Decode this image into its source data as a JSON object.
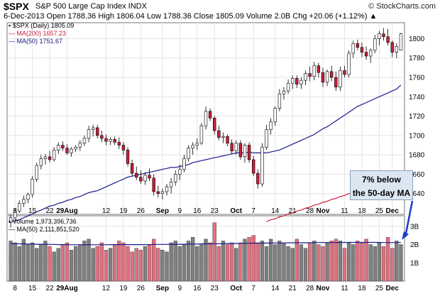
{
  "header": {
    "symbol": "$SPX",
    "name": "S&P 500 Large Cap Index INDX",
    "site": "© StockCharts.com",
    "stats_line": "6-Dec-2013   Open 1788.36  High 1806.04  Low 1788.36  Close 1805.09  Volume 2.0B  Chg +20.06 (+1.12%) ▲"
  },
  "legend": {
    "price": "$SPX (Daily) 1805.09",
    "ma200": "MA(200) 1657.23",
    "ma50": "MA(50) 1751.67"
  },
  "volume_legend": {
    "volume": "Volume 1,973,396,736",
    "ma50": "MA(50) 2,111,851,520"
  },
  "callout": {
    "line1": "7% below",
    "line2": "the 50-day MA"
  },
  "colors": {
    "up": "#ffffff",
    "down": "#c8203c",
    "ma50": "#1a1a8c",
    "ma200": "#d0203c",
    "vol_up": "#7f7f7f",
    "vol_down": "#e07080",
    "arrow": "#1a3ccc"
  },
  "chart_data": [
    {
      "type": "candlestick",
      "title": "$SPX (Daily) 1805.09",
      "ylim": [
        1620,
        1815
      ],
      "yticks": [
        1640,
        1660,
        1680,
        1700,
        1720,
        1740,
        1760,
        1780,
        1800
      ],
      "xtick_labels": [
        "8",
        "15",
        "22",
        "29Aug",
        "12",
        "19",
        "26",
        "Sep",
        "9",
        "16",
        "23",
        "Oct",
        "7",
        "14",
        "21",
        "28",
        "Nov",
        "11",
        "18",
        "25",
        "Dec"
      ],
      "series": [
        {
          "name": "$SPX",
          "ohlc": [
            [
              1610,
              1618,
              1605,
              1615
            ],
            [
              1615,
              1625,
              1612,
              1622
            ],
            [
              1622,
              1633,
              1620,
              1630
            ],
            [
              1630,
              1638,
              1626,
              1634
            ],
            [
              1634,
              1641,
              1630,
              1639
            ],
            [
              1639,
              1658,
              1636,
              1655
            ],
            [
              1655,
              1672,
              1652,
              1669
            ],
            [
              1669,
              1680,
              1665,
              1676
            ],
            [
              1676,
              1681,
              1670,
              1678
            ],
            [
              1678,
              1684,
              1672,
              1675
            ],
            [
              1675,
              1688,
              1673,
              1685
            ],
            [
              1685,
              1693,
              1681,
              1690
            ],
            [
              1690,
              1694,
              1684,
              1687
            ],
            [
              1687,
              1691,
              1680,
              1682
            ],
            [
              1682,
              1688,
              1678,
              1686
            ],
            [
              1686,
              1690,
              1683,
              1688
            ],
            [
              1688,
              1695,
              1684,
              1692
            ],
            [
              1692,
              1700,
              1689,
              1697
            ],
            [
              1697,
              1710,
              1693,
              1706
            ],
            [
              1706,
              1711,
              1699,
              1708
            ],
            [
              1708,
              1711,
              1697,
              1700
            ],
            [
              1700,
              1705,
              1693,
              1697
            ],
            [
              1697,
              1701,
              1690,
              1694
            ],
            [
              1694,
              1698,
              1690,
              1696
            ],
            [
              1696,
              1699,
              1690,
              1693
            ],
            [
              1693,
              1698,
              1686,
              1690
            ],
            [
              1690,
              1693,
              1680,
              1685
            ],
            [
              1685,
              1688,
              1668,
              1671
            ],
            [
              1671,
              1675,
              1658,
              1661
            ],
            [
              1661,
              1668,
              1654,
              1657
            ],
            [
              1657,
              1664,
              1650,
              1653
            ],
            [
              1653,
              1662,
              1649,
              1659
            ],
            [
              1659,
              1666,
              1653,
              1656
            ],
            [
              1656,
              1660,
              1638,
              1642
            ],
            [
              1642,
              1648,
              1636,
              1640
            ],
            [
              1640,
              1645,
              1634,
              1642
            ],
            [
              1642,
              1650,
              1638,
              1647
            ],
            [
              1647,
              1656,
              1640,
              1652
            ],
            [
              1652,
              1664,
              1648,
              1660
            ],
            [
              1660,
              1670,
              1654,
              1665
            ],
            [
              1665,
              1680,
              1662,
              1676
            ],
            [
              1676,
              1690,
              1673,
              1687
            ],
            [
              1687,
              1693,
              1680,
              1690
            ],
            [
              1690,
              1697,
              1685,
              1692
            ],
            [
              1692,
              1713,
              1690,
              1710
            ],
            [
              1710,
              1730,
              1706,
              1725
            ],
            [
              1725,
              1728,
              1715,
              1718
            ],
            [
              1718,
              1720,
              1701,
              1705
            ],
            [
              1705,
              1710,
              1695,
              1698
            ],
            [
              1698,
              1703,
              1692,
              1699
            ],
            [
              1699,
              1701,
              1689,
              1692
            ],
            [
              1692,
              1696,
              1681,
              1684
            ],
            [
              1684,
              1695,
              1680,
              1692
            ],
            [
              1692,
              1695,
              1675,
              1678
            ],
            [
              1678,
              1692,
              1672,
              1690
            ],
            [
              1690,
              1693,
              1672,
              1675
            ],
            [
              1675,
              1679,
              1658,
              1661
            ],
            [
              1661,
              1665,
              1645,
              1650
            ],
            [
              1650,
              1692,
              1647,
              1688
            ],
            [
              1688,
              1711,
              1685,
              1706
            ],
            [
              1706,
              1718,
              1701,
              1714
            ],
            [
              1714,
              1730,
              1710,
              1728
            ],
            [
              1728,
              1748,
              1725,
              1743
            ],
            [
              1743,
              1750,
              1737,
              1746
            ],
            [
              1746,
              1758,
              1743,
              1754
            ],
            [
              1754,
              1762,
              1748,
              1759
            ],
            [
              1759,
              1762,
              1749,
              1753
            ],
            [
              1753,
              1760,
              1748,
              1757
            ],
            [
              1757,
              1767,
              1752,
              1764
            ],
            [
              1764,
              1771,
              1756,
              1761
            ],
            [
              1761,
              1776,
              1757,
              1772
            ],
            [
              1772,
              1775,
              1760,
              1765
            ],
            [
              1765,
              1770,
              1750,
              1755
            ],
            [
              1755,
              1768,
              1751,
              1766
            ],
            [
              1766,
              1772,
              1756,
              1760
            ],
            [
              1760,
              1766,
              1746,
              1750
            ],
            [
              1750,
              1771,
              1746,
              1767
            ],
            [
              1767,
              1772,
              1760,
              1763
            ],
            [
              1763,
              1788,
              1760,
              1785
            ],
            [
              1785,
              1798,
              1780,
              1795
            ],
            [
              1795,
              1799,
              1788,
              1791
            ],
            [
              1791,
              1796,
              1781,
              1786
            ],
            [
              1786,
              1792,
              1778,
              1782
            ],
            [
              1782,
              1790,
              1775,
              1788
            ],
            [
              1788,
              1804,
              1785,
              1800
            ],
            [
              1800,
              1808,
              1793,
              1805
            ],
            [
              1805,
              1811,
              1798,
              1802
            ],
            [
              1802,
              1810,
              1793,
              1796
            ],
            [
              1796,
              1798,
              1781,
              1786
            ],
            [
              1786,
              1795,
              1780,
              1792
            ],
            [
              1788,
              1806,
              1788,
              1805
            ]
          ]
        },
        {
          "name": "MA(50)",
          "values": [
            1611,
            1612,
            1613,
            1615,
            1617,
            1619,
            1621,
            1623,
            1625,
            1627,
            1628,
            1630,
            1631,
            1633,
            1634,
            1636,
            1637,
            1639,
            1641,
            1642,
            1643,
            1645,
            1647,
            1649,
            1651,
            1653,
            1655,
            1657,
            1658,
            1659,
            1660,
            1661,
            1662,
            1663,
            1664,
            1665,
            1666,
            1667,
            1667,
            1668,
            1669,
            1670,
            1672,
            1673,
            1674,
            1675,
            1676,
            1677,
            1678,
            1679,
            1680,
            1681,
            1682,
            1682,
            1682,
            1683,
            1682,
            1682,
            1682,
            1682,
            1683,
            1684,
            1685,
            1687,
            1689,
            1691,
            1693,
            1695,
            1697,
            1699,
            1701,
            1704,
            1707,
            1709,
            1712,
            1715,
            1718,
            1721,
            1724,
            1727,
            1730,
            1732,
            1734,
            1736,
            1738,
            1740,
            1742,
            1744,
            1746,
            1748,
            1752
          ]
        },
        {
          "name": "MA(200)",
          "values": [
            null,
            null,
            null,
            null,
            null,
            null,
            null,
            null,
            null,
            null,
            null,
            null,
            null,
            null,
            null,
            null,
            null,
            null,
            null,
            null,
            null,
            null,
            null,
            null,
            null,
            null,
            null,
            null,
            null,
            null,
            null,
            null,
            null,
            null,
            null,
            null,
            null,
            null,
            null,
            null,
            null,
            null,
            null,
            null,
            null,
            null,
            null,
            null,
            null,
            null,
            null,
            null,
            null,
            null,
            null,
            null,
            null,
            null,
            null,
            1611,
            1613,
            1614,
            1616,
            1617,
            1619,
            1620,
            1622,
            1623,
            1625,
            1626,
            1628,
            1629,
            1631,
            1632,
            1634,
            1635,
            1637,
            1638,
            1640,
            1641,
            1643,
            1644,
            1646,
            1647,
            1649,
            1650,
            1652,
            1653,
            1655,
            1656,
            1657
          ]
        }
      ]
    },
    {
      "type": "bar",
      "title": "Volume 1,973,396,736",
      "ylim": [
        0,
        3.5
      ],
      "yticks": [
        "1B",
        "2B",
        "3B"
      ],
      "ytick_values": [
        1,
        2,
        3
      ],
      "xtick_labels": [
        "8",
        "15",
        "22",
        "29Aug",
        "12",
        "19",
        "26",
        "Sep",
        "9",
        "16",
        "23",
        "Oct",
        "7",
        "14",
        "21",
        "28",
        "Nov",
        "11",
        "18",
        "25",
        "Dec"
      ],
      "series": [
        {
          "name": "Volume",
          "values": [
            2.2,
            2.1,
            1.9,
            2.3,
            2.0,
            2.1,
            1.8,
            2.0,
            2.2,
            1.9,
            1.6,
            1.8,
            2.0,
            2.1,
            1.7,
            1.9,
            2.0,
            2.2,
            2.3,
            1.8,
            1.9,
            2.1,
            1.7,
            1.8,
            2.0,
            2.2,
            2.1,
            1.9,
            1.6,
            1.8,
            1.7,
            1.9,
            2.0,
            2.3,
            1.8,
            1.7,
            1.6,
            2.1,
            2.2,
            1.9,
            2.0,
            2.2,
            2.4,
            1.9,
            2.0,
            2.3,
            2.1,
            3.2,
            1.9,
            2.2,
            2.0,
            2.1,
            1.8,
            2.1,
            2.3,
            2.4,
            2.5,
            2.1,
            2.2,
            1.9,
            2.3,
            2.0,
            2.2,
            2.1,
            1.9,
            1.8,
            2.3,
            2.0,
            1.8,
            2.1,
            2.2,
            2.0,
            1.9,
            2.1,
            2.2,
            2.3,
            2.2,
            1.8,
            2.1,
            2.0,
            2.2,
            2.1,
            2.3,
            2.0,
            1.9,
            2.1,
            1.9,
            2.4,
            1.8,
            2.2,
            2.0
          ]
        },
        {
          "name": "MA(50)",
          "values": [
            2.05,
            2.05,
            2.04,
            2.04,
            2.03,
            2.03,
            2.02,
            2.02,
            2.02,
            2.01,
            2.01,
            2.0,
            2.0,
            2.0,
            1.99,
            1.99,
            1.99,
            1.99,
            1.99,
            1.99,
            1.99,
            1.99,
            1.99,
            2.0,
            2.0,
            2.0,
            2.0,
            2.0,
            2.0,
            2.0,
            2.0,
            2.0,
            2.0,
            2.01,
            2.01,
            2.01,
            2.01,
            2.02,
            2.02,
            2.02,
            2.02,
            2.03,
            2.03,
            2.03,
            2.04,
            2.04,
            2.04,
            2.05,
            2.05,
            2.05,
            2.06,
            2.06,
            2.06,
            2.07,
            2.07,
            2.07,
            2.08,
            2.08,
            2.08,
            2.08,
            2.09,
            2.09,
            2.09,
            2.09,
            2.1,
            2.1,
            2.1,
            2.1,
            2.1,
            2.1,
            2.11,
            2.11,
            2.11,
            2.11,
            2.11,
            2.11,
            2.12,
            2.12,
            2.12,
            2.12,
            2.12,
            2.12,
            2.12,
            2.12,
            2.12,
            2.12,
            2.11,
            2.11,
            2.11,
            2.11,
            2.11
          ]
        }
      ]
    }
  ]
}
